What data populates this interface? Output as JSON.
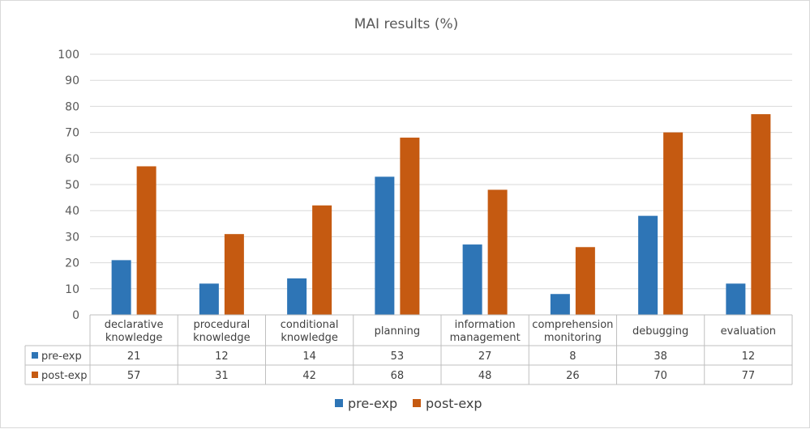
{
  "chart_data": {
    "type": "bar",
    "title": "MAI results (%)",
    "xlabel": "",
    "ylabel": "",
    "ylim": [
      0,
      100
    ],
    "yticks": [
      0,
      10,
      20,
      30,
      40,
      50,
      60,
      70,
      80,
      90,
      100
    ],
    "grid": true,
    "legend_position": "bottom",
    "categories": [
      [
        "declarative",
        "knowledge"
      ],
      [
        "procedural",
        "knowledge"
      ],
      [
        "conditional",
        "knowledge"
      ],
      [
        "planning"
      ],
      [
        "information",
        "management"
      ],
      [
        "comprehension",
        "monitoring"
      ],
      [
        "debugging"
      ],
      [
        "evaluation"
      ]
    ],
    "series": [
      {
        "name": "pre-exp",
        "color": "#2E75B6",
        "values": [
          21,
          12,
          14,
          53,
          27,
          8,
          38,
          12
        ]
      },
      {
        "name": "post-exp",
        "color": "#C55A11",
        "values": [
          57,
          31,
          42,
          68,
          48,
          26,
          70,
          77
        ]
      }
    ]
  }
}
